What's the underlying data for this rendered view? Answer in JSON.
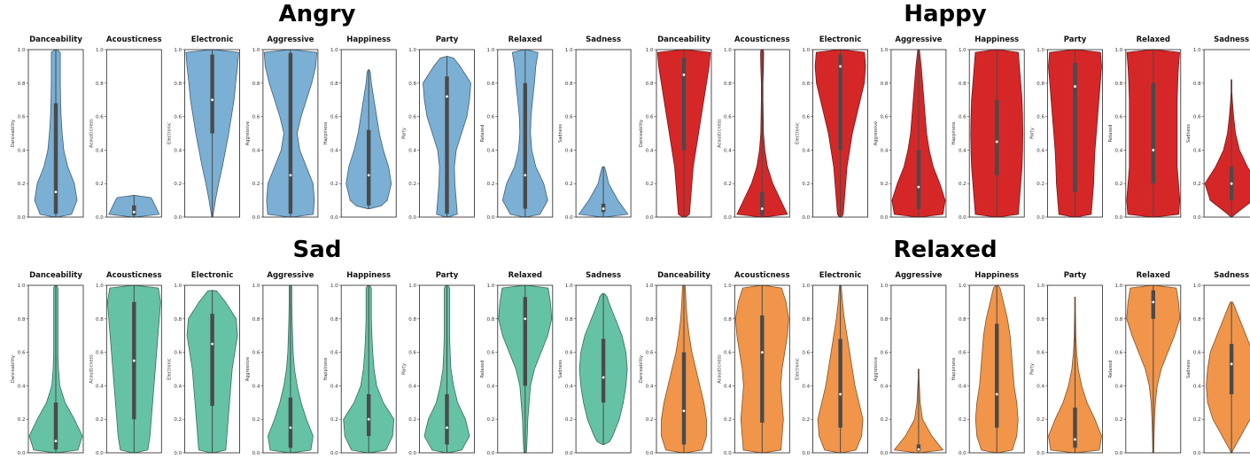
{
  "figure": {
    "groups": [
      {
        "name": "Angry",
        "color": "#7bafd4"
      },
      {
        "name": "Happy",
        "color": "#d62728"
      },
      {
        "name": "Sad",
        "color": "#66c2a5"
      },
      {
        "name": "Relaxed",
        "color": "#f0954a"
      }
    ],
    "features": [
      "Danceability",
      "Acousticness",
      "Electronic",
      "Aggressive",
      "Happiness",
      "Party",
      "Relaxed",
      "Sadness"
    ]
  },
  "chart_data": [
    {
      "type": "violin",
      "title": "Angry",
      "color": "#7bafd4",
      "categories": [
        "Danceability",
        "Acousticness",
        "Electronic",
        "Aggressive",
        "Happiness",
        "Party",
        "Relaxed",
        "Sadness"
      ],
      "ylim": [
        0,
        1
      ],
      "yticks": [
        "0.0",
        "0.2",
        "0.4",
        "0.6",
        "0.8",
        "1.0"
      ],
      "series": [
        {
          "range": [
            0.0,
            1.0
          ],
          "q1": 0.02,
          "median": 0.15,
          "q3": 0.68,
          "width": [
            0.55,
            0.8,
            0.7,
            0.45,
            0.3,
            0.24,
            0.2,
            0.18,
            0.17,
            0.17,
            0.17
          ]
        },
        {
          "range": [
            0.0,
            0.13
          ],
          "q1": 0.01,
          "median": 0.03,
          "q3": 0.07,
          "width": [
            1.0,
            0.7,
            0.3,
            0.0,
            0.0,
            0.0,
            0.0,
            0.0,
            0.0,
            0.0,
            0.0
          ]
        },
        {
          "range": [
            0.0,
            1.0
          ],
          "q1": 0.5,
          "median": 0.7,
          "q3": 0.97,
          "width": [
            0.02,
            0.12,
            0.24,
            0.38,
            0.5,
            0.62,
            0.72,
            0.82,
            0.88,
            0.95,
            1.0
          ]
        },
        {
          "range": [
            0.0,
            1.0
          ],
          "q1": 0.02,
          "median": 0.25,
          "q3": 0.98,
          "width": [
            0.85,
            0.9,
            0.85,
            0.6,
            0.35,
            0.25,
            0.4,
            0.6,
            0.8,
            0.95,
            1.0
          ]
        },
        {
          "range": [
            0.05,
            0.88
          ],
          "q1": 0.07,
          "median": 0.25,
          "q3": 0.52,
          "width": [
            0.0,
            0.7,
            0.85,
            0.75,
            0.55,
            0.4,
            0.3,
            0.2,
            0.1,
            0.04,
            0.0
          ]
        },
        {
          "range": [
            0.0,
            0.96
          ],
          "q1": 0.02,
          "median": 0.72,
          "q3": 0.84,
          "width": [
            0.4,
            0.35,
            0.3,
            0.28,
            0.35,
            0.55,
            0.75,
            0.85,
            0.9,
            0.5,
            0.0
          ]
        },
        {
          "range": [
            0.0,
            1.0
          ],
          "q1": 0.05,
          "median": 0.25,
          "q3": 0.8,
          "width": [
            0.5,
            0.85,
            0.7,
            0.4,
            0.25,
            0.2,
            0.22,
            0.28,
            0.35,
            0.4,
            0.5
          ]
        },
        {
          "range": [
            0.0,
            0.3
          ],
          "q1": 0.03,
          "median": 0.05,
          "q3": 0.08,
          "width": [
            1.0,
            0.55,
            0.2,
            0.05,
            0.0,
            0.0,
            0.0,
            0.0,
            0.0,
            0.0,
            0.0
          ]
        }
      ]
    },
    {
      "type": "violin",
      "title": "Happy",
      "color": "#d62728",
      "categories": [
        "Danceability",
        "Acousticness",
        "Electronic",
        "Aggressive",
        "Happiness",
        "Party",
        "Relaxed",
        "Sadness"
      ],
      "ylim": [
        0,
        1
      ],
      "yticks": [
        "0.0",
        "0.2",
        "0.4",
        "0.6",
        "0.8",
        "1.0"
      ],
      "series": [
        {
          "range": [
            0.0,
            1.0
          ],
          "q1": 0.4,
          "median": 0.85,
          "q3": 0.95,
          "width": [
            0.2,
            0.25,
            0.3,
            0.35,
            0.45,
            0.55,
            0.65,
            0.75,
            0.85,
            0.95,
            1.0
          ]
        },
        {
          "range": [
            0.0,
            1.0
          ],
          "q1": 0.01,
          "median": 0.05,
          "q3": 0.15,
          "width": [
            1.0,
            0.7,
            0.4,
            0.2,
            0.1,
            0.05,
            0.04,
            0.03,
            0.03,
            0.05,
            0.06
          ]
        },
        {
          "range": [
            0.0,
            1.0
          ],
          "q1": 0.4,
          "median": 0.9,
          "q3": 0.97,
          "width": [
            0.1,
            0.15,
            0.2,
            0.25,
            0.35,
            0.45,
            0.6,
            0.75,
            0.9,
            0.95,
            0.9
          ]
        },
        {
          "range": [
            0.0,
            1.0
          ],
          "q1": 0.05,
          "median": 0.18,
          "q3": 0.4,
          "width": [
            0.9,
            1.0,
            0.8,
            0.55,
            0.4,
            0.3,
            0.25,
            0.2,
            0.15,
            0.1,
            0.03
          ]
        },
        {
          "range": [
            0.0,
            1.0
          ],
          "q1": 0.25,
          "median": 0.45,
          "q3": 0.7,
          "width": [
            0.8,
            0.85,
            0.9,
            0.95,
            0.97,
            0.98,
            0.97,
            0.95,
            0.9,
            0.85,
            0.8
          ]
        },
        {
          "range": [
            0.0,
            1.0
          ],
          "q1": 0.15,
          "median": 0.78,
          "q3": 0.92,
          "width": [
            0.6,
            0.65,
            0.7,
            0.72,
            0.75,
            0.8,
            0.85,
            0.9,
            0.95,
            1.0,
            0.95
          ]
        },
        {
          "range": [
            0.0,
            1.0
          ],
          "q1": 0.2,
          "median": 0.4,
          "q3": 0.8,
          "width": [
            0.95,
            1.0,
            0.95,
            0.9,
            0.9,
            0.9,
            0.9,
            0.9,
            0.92,
            0.95,
            1.0
          ]
        },
        {
          "range": [
            0.0,
            0.82
          ],
          "q1": 0.1,
          "median": 0.2,
          "q3": 0.3,
          "width": [
            0.0,
            0.8,
            1.0,
            0.6,
            0.3,
            0.15,
            0.08,
            0.03,
            0.0,
            0.0,
            0.0
          ]
        }
      ]
    },
    {
      "type": "violin",
      "title": "Sad",
      "color": "#66c2a5",
      "categories": [
        "Danceability",
        "Acousticness",
        "Electronic",
        "Aggressive",
        "Happiness",
        "Party",
        "Relaxed",
        "Sadness"
      ],
      "ylim": [
        0,
        1
      ],
      "yticks": [
        "0.0",
        "0.2",
        "0.4",
        "0.6",
        "0.8",
        "1.0"
      ],
      "series": [
        {
          "range": [
            0.0,
            1.0
          ],
          "q1": 0.02,
          "median": 0.07,
          "q3": 0.3,
          "width": [
            0.8,
            1.0,
            0.7,
            0.35,
            0.15,
            0.1,
            0.08,
            0.08,
            0.08,
            0.08,
            0.08
          ]
        },
        {
          "range": [
            0.0,
            1.0
          ],
          "q1": 0.2,
          "median": 0.55,
          "q3": 0.9,
          "width": [
            0.5,
            0.6,
            0.65,
            0.7,
            0.75,
            0.8,
            0.85,
            0.9,
            0.95,
            1.0,
            0.9
          ]
        },
        {
          "range": [
            0.0,
            0.97
          ],
          "q1": 0.28,
          "median": 0.65,
          "q3": 0.83,
          "width": [
            0.5,
            0.55,
            0.6,
            0.65,
            0.7,
            0.75,
            0.85,
            0.95,
            0.9,
            0.5,
            0.0
          ]
        },
        {
          "range": [
            0.0,
            1.0
          ],
          "q1": 0.03,
          "median": 0.15,
          "q3": 0.33,
          "width": [
            0.75,
            0.85,
            0.6,
            0.4,
            0.25,
            0.15,
            0.1,
            0.08,
            0.06,
            0.05,
            0.05
          ]
        },
        {
          "range": [
            0.0,
            1.0
          ],
          "q1": 0.1,
          "median": 0.2,
          "q3": 0.35,
          "width": [
            0.6,
            0.9,
            0.95,
            0.55,
            0.3,
            0.2,
            0.15,
            0.12,
            0.1,
            0.1,
            0.1
          ]
        },
        {
          "range": [
            0.0,
            1.0
          ],
          "q1": 0.05,
          "median": 0.15,
          "q3": 0.35,
          "width": [
            0.5,
            0.85,
            0.7,
            0.4,
            0.25,
            0.15,
            0.12,
            0.1,
            0.1,
            0.1,
            0.1
          ]
        },
        {
          "range": [
            0.0,
            1.0
          ],
          "q1": 0.4,
          "median": 0.8,
          "q3": 0.93,
          "width": [
            0.05,
            0.08,
            0.1,
            0.15,
            0.2,
            0.35,
            0.6,
            0.85,
            1.0,
            0.95,
            0.85
          ]
        },
        {
          "range": [
            0.05,
            0.95
          ],
          "q1": 0.3,
          "median": 0.45,
          "q3": 0.68,
          "width": [
            0.0,
            0.35,
            0.6,
            0.75,
            0.85,
            0.9,
            0.85,
            0.7,
            0.45,
            0.2,
            0.0
          ]
        }
      ]
    },
    {
      "type": "violin",
      "title": "Relaxed",
      "color": "#f0954a",
      "categories": [
        "Danceability",
        "Acousticness",
        "Electronic",
        "Aggressive",
        "Happiness",
        "Party",
        "Relaxed",
        "Sadness"
      ],
      "ylim": [
        0,
        1
      ],
      "yticks": [
        "0.0",
        "0.2",
        "0.4",
        "0.6",
        "0.8",
        "1.0"
      ],
      "series": [
        {
          "range": [
            0.0,
            1.0
          ],
          "q1": 0.05,
          "median": 0.25,
          "q3": 0.6,
          "width": [
            0.65,
            0.85,
            0.85,
            0.75,
            0.6,
            0.45,
            0.3,
            0.2,
            0.12,
            0.08,
            0.05
          ]
        },
        {
          "range": [
            0.0,
            1.0
          ],
          "q1": 0.18,
          "median": 0.6,
          "q3": 0.82,
          "width": [
            0.7,
            0.75,
            0.8,
            0.75,
            0.7,
            0.75,
            0.85,
            0.95,
            1.0,
            0.9,
            0.7
          ]
        },
        {
          "range": [
            0.0,
            1.0
          ],
          "q1": 0.15,
          "median": 0.35,
          "q3": 0.68,
          "width": [
            0.55,
            0.8,
            0.85,
            0.7,
            0.55,
            0.45,
            0.35,
            0.25,
            0.15,
            0.08,
            0.03
          ]
        },
        {
          "range": [
            0.0,
            0.5
          ],
          "q1": 0.01,
          "median": 0.02,
          "q3": 0.05,
          "width": [
            1.0,
            0.5,
            0.15,
            0.06,
            0.03,
            0.0,
            0.0,
            0.0,
            0.0,
            0.0,
            0.0
          ]
        },
        {
          "range": [
            0.0,
            1.0
          ],
          "q1": 0.15,
          "median": 0.35,
          "q3": 0.77,
          "width": [
            0.55,
            0.75,
            0.8,
            0.75,
            0.65,
            0.6,
            0.55,
            0.5,
            0.4,
            0.25,
            0.1
          ]
        },
        {
          "range": [
            0.0,
            0.93
          ],
          "q1": 0.03,
          "median": 0.08,
          "q3": 0.27,
          "width": [
            0.9,
            1.0,
            0.75,
            0.45,
            0.25,
            0.12,
            0.06,
            0.03,
            0.02,
            0.01,
            0.0
          ]
        },
        {
          "range": [
            0.0,
            1.0
          ],
          "q1": 0.8,
          "median": 0.9,
          "q3": 0.97,
          "width": [
            0.02,
            0.03,
            0.05,
            0.08,
            0.15,
            0.3,
            0.55,
            0.8,
            1.0,
            0.95,
            0.85
          ]
        },
        {
          "range": [
            0.0,
            0.9
          ],
          "q1": 0.35,
          "median": 0.53,
          "q3": 0.65,
          "width": [
            0.0,
            0.35,
            0.7,
            0.9,
            0.95,
            0.9,
            0.8,
            0.55,
            0.3,
            0.05,
            0.0
          ]
        }
      ]
    }
  ]
}
